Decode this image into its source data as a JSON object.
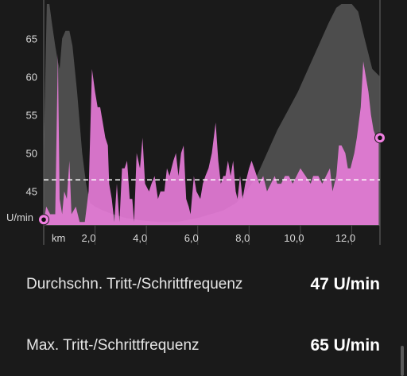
{
  "chart_data": {
    "type": "area",
    "x_unit": "km",
    "y_unit": "U/min",
    "xlim": [
      0,
      13.1
    ],
    "ylim": [
      40.6,
      69.5
    ],
    "x_ticks": [
      2.0,
      4.0,
      6.0,
      8.0,
      10.0,
      12.0
    ],
    "x_tick_labels": [
      "2,0",
      "4,0",
      "6,0",
      "8,0",
      "10,0",
      "12,0"
    ],
    "y_ticks": [
      45,
      50,
      55,
      60,
      65
    ],
    "y_tick_labels": [
      "45",
      "50",
      "55",
      "60",
      "65"
    ],
    "average_line": 46.5,
    "series": [
      {
        "role": "cadence",
        "color": "#ef7fe0",
        "points": [
          [
            0,
            41
          ],
          [
            0.1,
            43
          ],
          [
            0.25,
            42
          ],
          [
            0.45,
            42
          ],
          [
            0.55,
            63
          ],
          [
            0.62,
            44
          ],
          [
            0.72,
            42
          ],
          [
            0.8,
            45
          ],
          [
            0.9,
            44
          ],
          [
            1.0,
            49
          ],
          [
            1.08,
            42
          ],
          [
            1.25,
            43
          ],
          [
            1.4,
            41
          ],
          [
            1.6,
            41
          ],
          [
            1.75,
            45
          ],
          [
            1.88,
            61
          ],
          [
            2.0,
            58
          ],
          [
            2.1,
            56
          ],
          [
            2.2,
            56
          ],
          [
            2.3,
            54
          ],
          [
            2.4,
            52
          ],
          [
            2.5,
            51
          ],
          [
            2.55,
            46
          ],
          [
            2.65,
            44
          ],
          [
            2.75,
            41
          ],
          [
            2.85,
            46
          ],
          [
            2.95,
            41
          ],
          [
            3.05,
            48
          ],
          [
            3.15,
            48
          ],
          [
            3.25,
            49
          ],
          [
            3.35,
            44
          ],
          [
            3.45,
            44
          ],
          [
            3.52,
            41
          ],
          [
            3.62,
            50
          ],
          [
            3.75,
            48
          ],
          [
            3.85,
            52
          ],
          [
            3.95,
            46
          ],
          [
            4.1,
            45
          ],
          [
            4.2,
            46
          ],
          [
            4.32,
            47
          ],
          [
            4.45,
            44
          ],
          [
            4.55,
            45
          ],
          [
            4.7,
            45
          ],
          [
            4.8,
            48
          ],
          [
            4.9,
            47
          ],
          [
            5.05,
            49
          ],
          [
            5.15,
            50
          ],
          [
            5.25,
            47
          ],
          [
            5.35,
            50
          ],
          [
            5.45,
            51
          ],
          [
            5.55,
            44
          ],
          [
            5.65,
            43
          ],
          [
            5.72,
            42
          ],
          [
            5.85,
            47
          ],
          [
            5.95,
            45
          ],
          [
            6.1,
            44
          ],
          [
            6.2,
            46
          ],
          [
            6.3,
            47
          ],
          [
            6.42,
            48
          ],
          [
            6.55,
            50
          ],
          [
            6.7,
            54
          ],
          [
            6.8,
            49
          ],
          [
            6.9,
            46
          ],
          [
            7.0,
            47
          ],
          [
            7.08,
            47
          ],
          [
            7.18,
            49
          ],
          [
            7.28,
            47
          ],
          [
            7.38,
            49
          ],
          [
            7.48,
            45
          ],
          [
            7.55,
            44
          ],
          [
            7.65,
            47
          ],
          [
            7.75,
            44
          ],
          [
            7.85,
            46
          ],
          [
            8.0,
            48
          ],
          [
            8.1,
            49
          ],
          [
            8.2,
            48
          ],
          [
            8.3,
            47
          ],
          [
            8.4,
            46
          ],
          [
            8.55,
            47
          ],
          [
            8.7,
            45
          ],
          [
            8.85,
            46
          ],
          [
            9.0,
            47
          ],
          [
            9.1,
            46
          ],
          [
            9.25,
            46
          ],
          [
            9.4,
            47
          ],
          [
            9.55,
            47
          ],
          [
            9.7,
            46
          ],
          [
            9.85,
            47
          ],
          [
            10.0,
            48
          ],
          [
            10.2,
            47
          ],
          [
            10.4,
            46
          ],
          [
            10.5,
            47
          ],
          [
            10.7,
            47
          ],
          [
            10.85,
            46
          ],
          [
            11.0,
            47
          ],
          [
            11.15,
            48
          ],
          [
            11.25,
            45
          ],
          [
            11.4,
            47
          ],
          [
            11.5,
            51
          ],
          [
            11.6,
            51
          ],
          [
            11.75,
            50
          ],
          [
            11.85,
            48
          ],
          [
            11.95,
            48
          ],
          [
            12.1,
            50
          ],
          [
            12.2,
            52
          ],
          [
            12.35,
            56
          ],
          [
            12.45,
            62
          ],
          [
            12.55,
            60
          ],
          [
            12.65,
            58
          ],
          [
            12.75,
            55
          ],
          [
            12.85,
            53
          ],
          [
            12.95,
            52
          ],
          [
            13.05,
            52
          ]
        ]
      },
      {
        "role": "background-profile",
        "color": "#575757",
        "points": [
          [
            0,
            50
          ],
          [
            0.12,
            69.5
          ],
          [
            0.22,
            69.5
          ],
          [
            0.32,
            67
          ],
          [
            0.45,
            64
          ],
          [
            0.55,
            62
          ],
          [
            0.62,
            61
          ],
          [
            0.72,
            65
          ],
          [
            0.85,
            66
          ],
          [
            1.0,
            66
          ],
          [
            1.12,
            64
          ],
          [
            1.3,
            58
          ],
          [
            1.5,
            50
          ],
          [
            1.65,
            46
          ],
          [
            1.8,
            43.5
          ],
          [
            2.0,
            43
          ],
          [
            2.3,
            42.5
          ],
          [
            2.7,
            42
          ],
          [
            3.2,
            41.5
          ],
          [
            3.8,
            41.2
          ],
          [
            4.5,
            41
          ],
          [
            5.2,
            41
          ],
          [
            6.0,
            41.5
          ],
          [
            6.5,
            42
          ],
          [
            7.0,
            42.5
          ],
          [
            7.5,
            43.5
          ],
          [
            7.9,
            45
          ],
          [
            8.3,
            47
          ],
          [
            8.7,
            50
          ],
          [
            9.1,
            53
          ],
          [
            9.5,
            55.5
          ],
          [
            9.9,
            58
          ],
          [
            10.3,
            61
          ],
          [
            10.7,
            64
          ],
          [
            11.1,
            67
          ],
          [
            11.4,
            69
          ],
          [
            11.6,
            69.5
          ],
          [
            12.0,
            69.5
          ],
          [
            12.25,
            68.5
          ],
          [
            12.5,
            65
          ],
          [
            12.8,
            61
          ],
          [
            13.1,
            60
          ]
        ]
      }
    ],
    "markers": [
      {
        "name": "start-point-marker",
        "x": 0,
        "y": 41.3
      },
      {
        "name": "end-point-marker",
        "x": 13.1,
        "y": 52
      }
    ]
  },
  "stats": [
    {
      "label": "Durchschn. Tritt-/Schrittfrequenz",
      "value": "47 U/min"
    },
    {
      "label": "Max. Tritt-/Schrittfrequenz",
      "value": "65 U/min"
    }
  ]
}
